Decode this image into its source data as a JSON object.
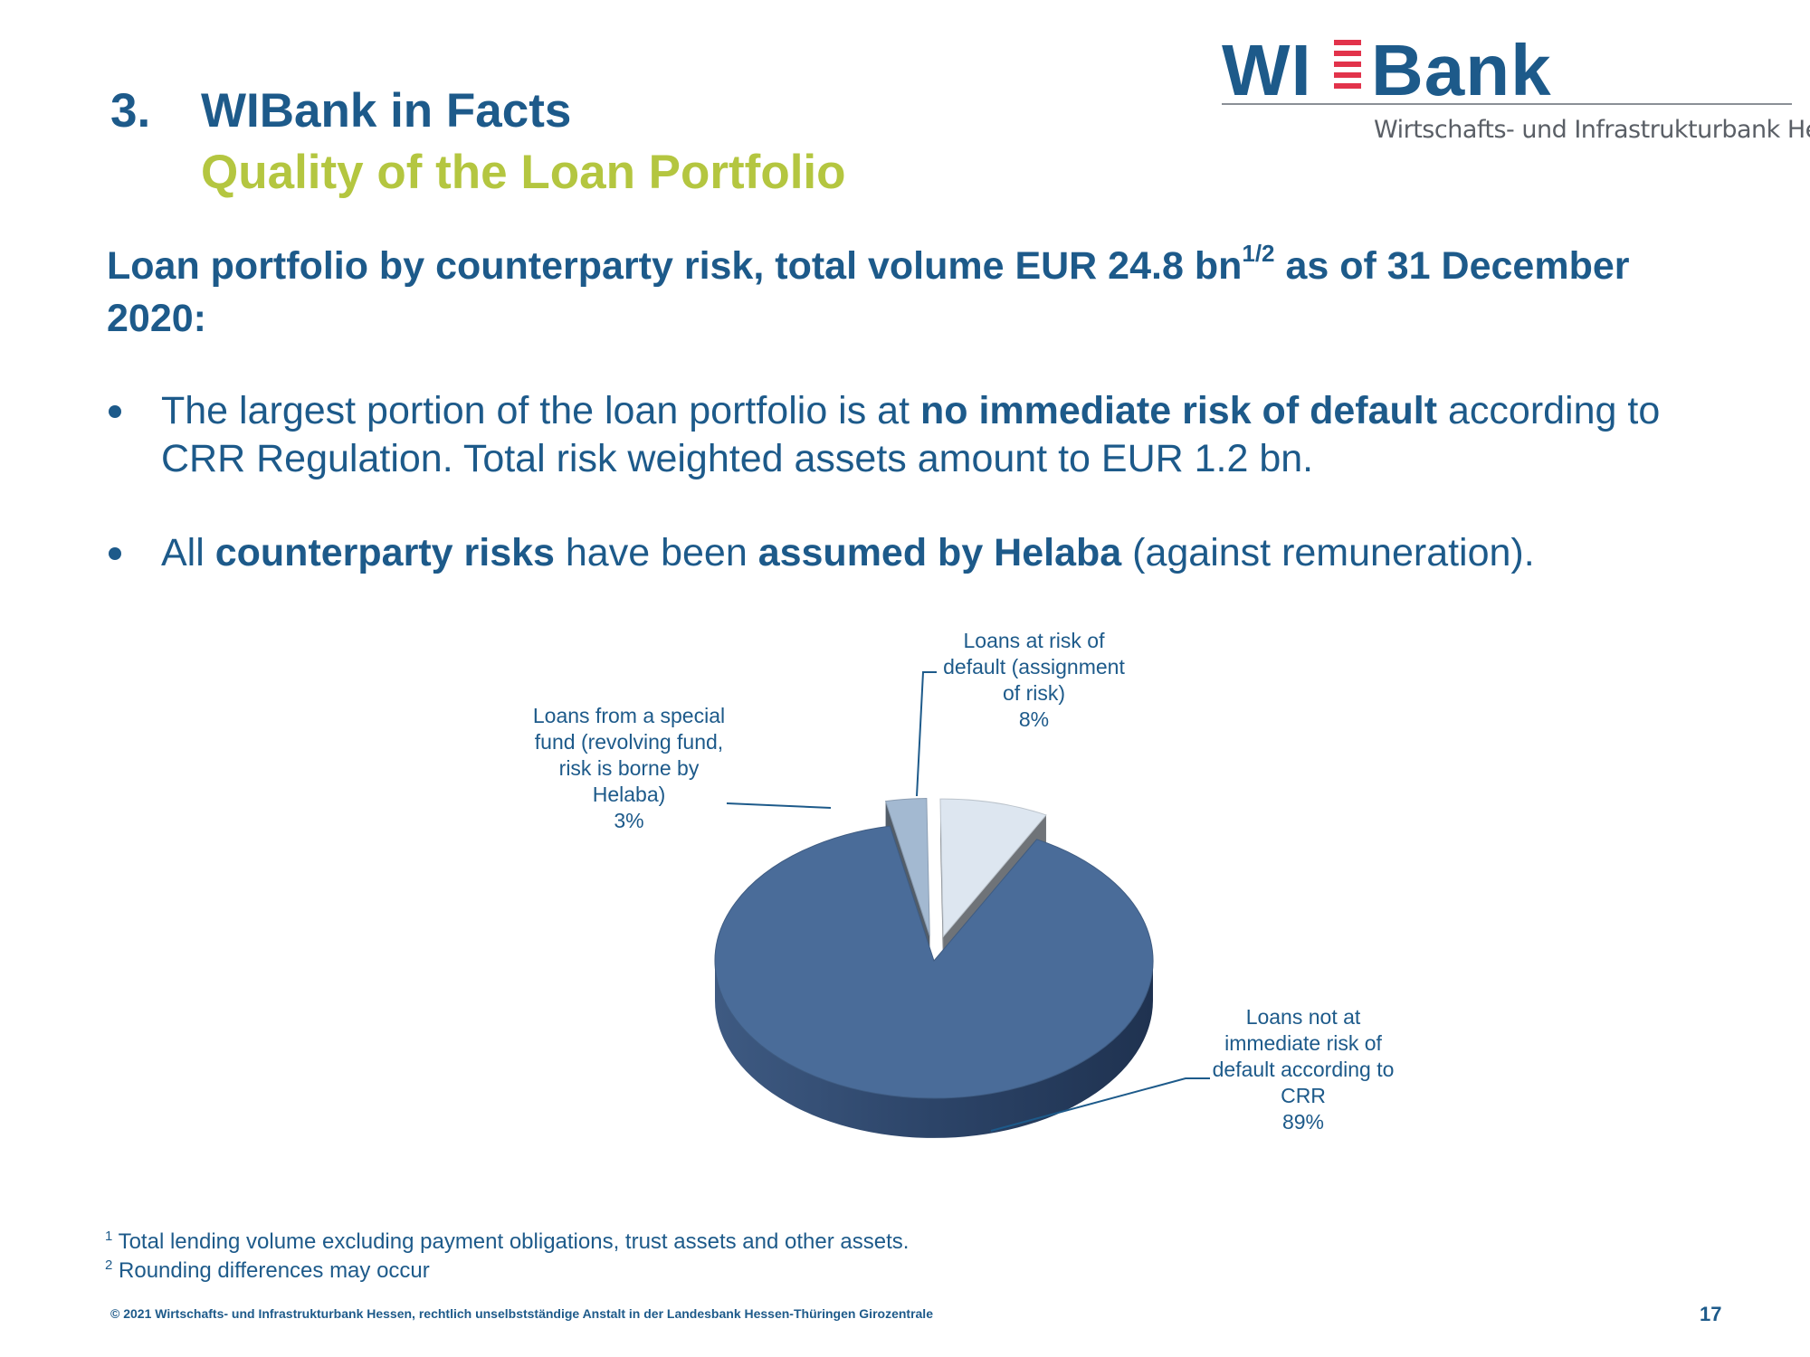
{
  "header": {
    "section_number": "3.",
    "title": "WIBank in Facts",
    "subtitle": "Quality of the Loan Portfolio"
  },
  "logo": {
    "word_left": "WI",
    "word_right": "Bank",
    "tagline": "Wirtschafts- und Infrastrukturbank Hessen",
    "colors": {
      "text": "#1d5a8a",
      "stripes": "#e2334b",
      "rule": "#8a8f96"
    }
  },
  "heading": {
    "text_before": "Loan portfolio by counterparty risk, total volume EUR 24.8 bn",
    "superscript": "1/2",
    "text_after": " as of 31 December 2020:"
  },
  "bullets": [
    {
      "pre": "The largest portion of the loan portfolio is at ",
      "bold": "no immediate risk of default",
      "post": " according to CRR Regulation. Total risk weighted assets amount to EUR 1.2 bn."
    },
    {
      "pre": "All ",
      "bold1": "counterparty risks",
      "mid": " have been ",
      "bold2": "assumed by Helaba",
      "post": " (against remuneration)."
    }
  ],
  "chart_data": {
    "type": "pie",
    "title": "",
    "slices": [
      {
        "label": "Loans not at immediate risk of default according to CRR",
        "value": 89,
        "display": "89%",
        "color": "#4a6c99",
        "exploded": false
      },
      {
        "label": "Loans from a special fund (revolving fund, risk is borne by Helaba)",
        "value": 3,
        "display": "3%",
        "color": "#a3b9d1",
        "exploded": true
      },
      {
        "label": "Loans at risk of default (assignment of risk)",
        "value": 8,
        "display": "8%",
        "color": "#dde6f0",
        "exploded": true
      }
    ],
    "labels_text": {
      "not_at_risk": [
        "Loans not at",
        "immediate risk of",
        "default according to",
        "CRR"
      ],
      "special_fund": [
        "Loans from a special",
        "fund (revolving fund,",
        "risk is borne by",
        "Helaba)"
      ],
      "at_risk": [
        "Loans at risk of",
        "default (assignment",
        "of risk)"
      ]
    },
    "style": "3d-exploded"
  },
  "footnotes": [
    {
      "mark": "1",
      "text": " Total lending volume excluding payment obligations, trust assets and other assets."
    },
    {
      "mark": "2",
      "text": " Rounding differences may occur"
    }
  ],
  "footer": {
    "copyright": "© 2021 Wirtschafts- und Infrastrukturbank Hessen, rechtlich unselbstständige Anstalt in der Landesbank Hessen-Thüringen Girozentrale",
    "page_number": "17"
  }
}
